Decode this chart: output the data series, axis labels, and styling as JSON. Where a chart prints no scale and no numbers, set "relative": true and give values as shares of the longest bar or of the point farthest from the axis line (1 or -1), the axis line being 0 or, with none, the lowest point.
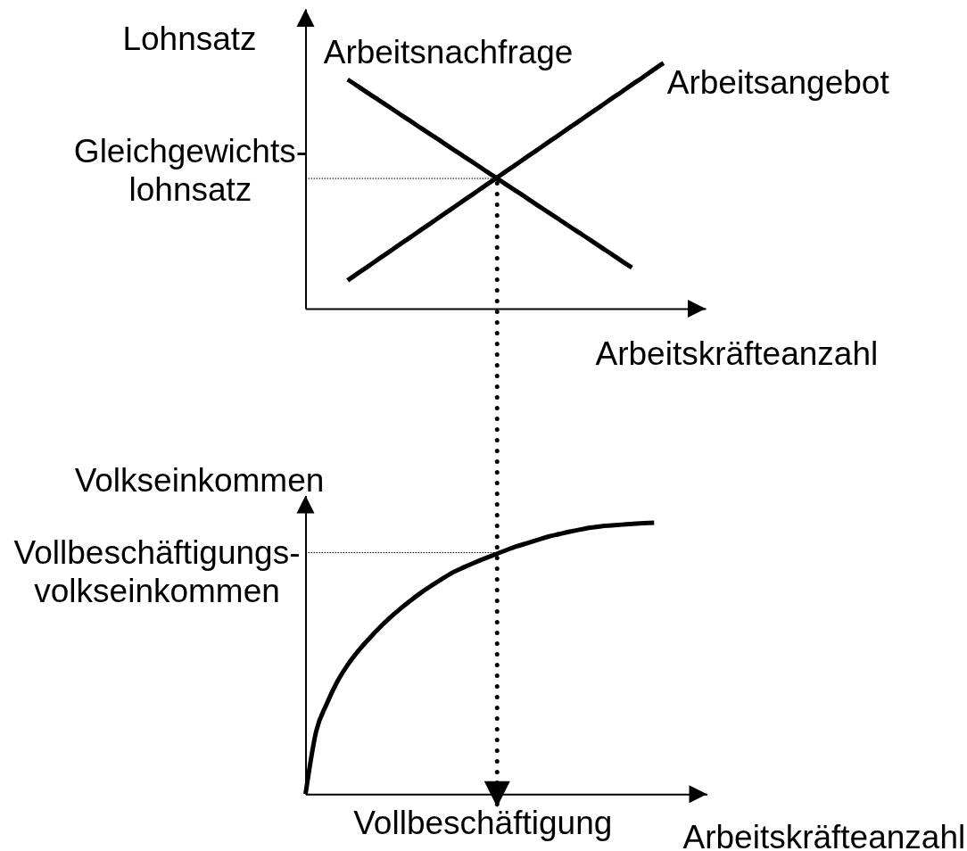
{
  "chart_data": [
    {
      "type": "line",
      "relative": true,
      "xlabel": "Arbeitskräfteanzahl",
      "ylabel": "Lohnsatz",
      "categories": [
        null,
        null,
        null,
        null,
        null,
        null,
        null,
        null,
        null,
        null,
        null,
        null,
        null,
        null,
        null,
        null,
        null,
        null,
        null,
        null,
        null,
        null,
        null,
        null,
        null,
        null,
        null,
        null,
        null,
        null,
        null,
        null,
        null,
        null,
        null,
        null,
        null,
        null,
        null
      ],
      "series": [
        {
          "name": "Arbeitsnachfrage",
          "color": "#000000",
          "values": [
            null,
            null,
            null,
            null,
            0.933,
            0.905,
            0.876,
            0.848,
            0.82,
            0.791,
            0.763,
            0.734,
            0.706,
            0.678,
            0.649,
            0.621,
            0.593,
            0.564,
            0.536,
            0.507,
            0.479,
            0.451,
            0.422,
            0.394,
            0.366,
            0.337,
            0.309,
            0.281,
            0.252,
            0.224,
            0.195,
            0.167,
            null,
            null,
            null,
            null,
            null,
            null,
            null
          ]
        },
        {
          "name": "Arbeitsangebot",
          "color": "#000000",
          "values": [
            null,
            null,
            null,
            null,
            0.115,
            0.145,
            0.174,
            0.204,
            0.233,
            0.263,
            0.292,
            0.322,
            0.351,
            0.381,
            0.41,
            0.44,
            0.469,
            0.499,
            0.528,
            0.558,
            0.587,
            0.617,
            0.646,
            0.676,
            0.705,
            0.735,
            0.764,
            0.794,
            0.823,
            0.853,
            0.882,
            0.912,
            0.941,
            0.971,
            1.0,
            null,
            null,
            null,
            null
          ]
        }
      ],
      "ref_lines": [
        {
          "axis": "y",
          "value": 0.53,
          "label": "Gleichgewichts-\nlohnsatz",
          "line_style": "dotted",
          "color": "#000000"
        }
      ]
    },
    {
      "type": "line",
      "relative": true,
      "xlabel": "Arbeitskräfteanzahl",
      "ylabel": "Volkseinkommen",
      "categories": [
        null,
        null,
        null,
        null,
        null,
        null,
        null,
        null,
        null,
        null,
        null,
        null,
        null,
        null,
        null,
        null,
        null,
        null,
        null,
        null,
        null,
        null,
        null,
        null,
        null,
        null,
        null,
        null,
        null,
        null,
        null,
        null,
        null,
        null,
        null,
        null,
        null,
        null,
        null
      ],
      "series": [
        {
          "color": "#000000",
          "values": [
            0,
            0.23,
            0.332,
            0.414,
            0.477,
            0.528,
            0.572,
            0.613,
            0.65,
            0.684,
            0.715,
            0.744,
            0.77,
            0.795,
            0.818,
            0.836,
            0.853,
            0.869,
            0.884,
            0.899,
            0.913,
            0.925,
            0.937,
            0.949,
            0.958,
            0.967,
            0.975,
            0.982,
            0.987,
            0.99,
            0.993,
            0.996,
            0.998,
            1.0,
            null,
            null,
            null,
            null,
            null
          ]
        }
      ],
      "ref_lines": [
        {
          "axis": "y",
          "value": 0.89,
          "label": "Vollbeschäftigungs-\nvolkseinkommen",
          "line_style": "dotted",
          "color": "#000000"
        }
      ],
      "annotations": [
        "Vollbeschäftigung"
      ]
    }
  ]
}
